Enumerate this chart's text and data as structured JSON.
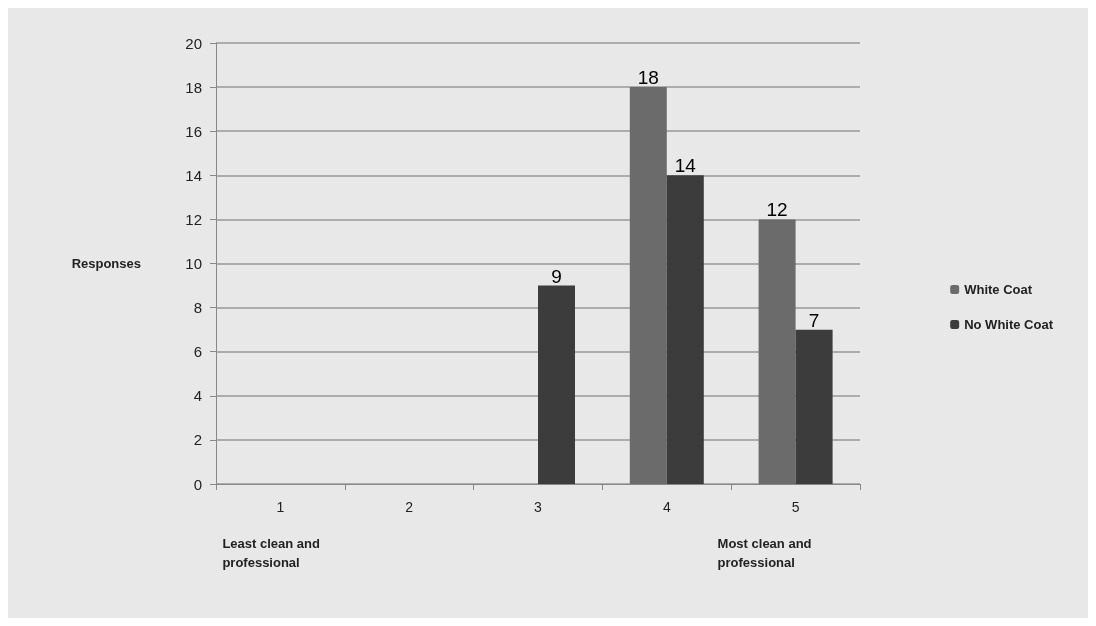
{
  "chart_data": {
    "type": "bar",
    "ylabel": "Responses",
    "categories": [
      "1",
      "2",
      "3",
      "4",
      "5"
    ],
    "series": [
      {
        "name": "White Coat",
        "color": "#6b6b6b",
        "values": [
          0,
          0,
          0,
          18,
          12
        ],
        "value_labels": [
          null,
          null,
          null,
          "18",
          "12"
        ]
      },
      {
        "name": "No White Coat",
        "color": "#3c3c3c",
        "values": [
          0,
          0,
          9,
          14,
          7
        ],
        "value_labels": [
          null,
          null,
          "9",
          "14",
          "7"
        ]
      }
    ],
    "ylim": [
      0,
      20
    ],
    "yticks": [
      0,
      2,
      4,
      6,
      8,
      10,
      12,
      14,
      16,
      18,
      20
    ],
    "grid": "y",
    "legend": "right",
    "annotations": [
      "Least clean and professional",
      "Most clean and professional"
    ]
  }
}
